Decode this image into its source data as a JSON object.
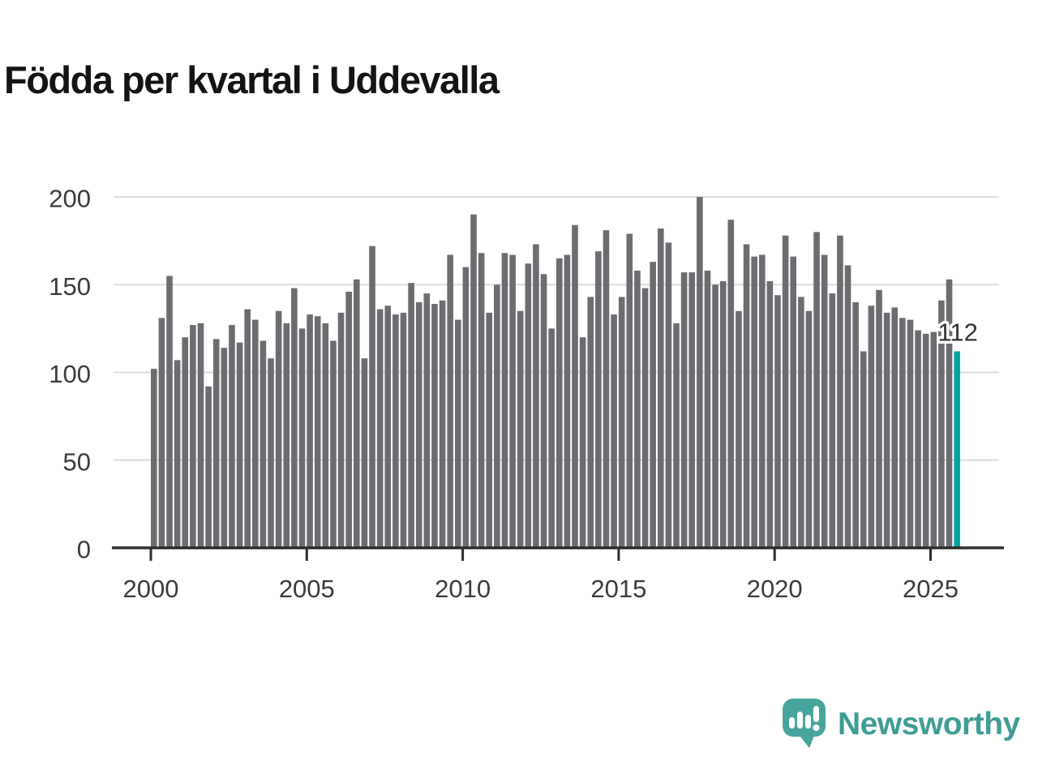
{
  "title": "Födda per kvartal i Uddevalla",
  "annotation": {
    "label": "112"
  },
  "logo": {
    "text": "Newsworthy"
  },
  "colors": {
    "bar": "#6c6c71",
    "accent": "#00a3a2",
    "axis": "#2e2e2e",
    "grid": "#dcdcdc",
    "tick_text": "#3b3b3b",
    "title_text": "#141414",
    "annotation_text": "#333333",
    "logo_teal": "#3f9d95"
  },
  "chart_data": {
    "type": "bar",
    "title": "Födda per kvartal i Uddevalla",
    "xlabel": "",
    "ylabel": "",
    "frequency": "quarterly",
    "start_quarter": "2000 Q1",
    "end_quarter": "2025 Q4",
    "x_tick_labels": [
      "2000",
      "2005",
      "2010",
      "2015",
      "2020",
      "2025"
    ],
    "x_tick_years": [
      2000,
      2005,
      2010,
      2015,
      2020,
      2025
    ],
    "y_ticks": [
      0,
      50,
      100,
      150,
      200
    ],
    "ylim": [
      0,
      200
    ],
    "grid": true,
    "legend": false,
    "highlight_last": true,
    "highlight_value_label": "112",
    "values": [
      102,
      131,
      155,
      107,
      120,
      127,
      128,
      92,
      119,
      114,
      127,
      117,
      136,
      130,
      118,
      108,
      135,
      128,
      148,
      125,
      133,
      132,
      128,
      118,
      134,
      146,
      153,
      108,
      172,
      136,
      138,
      133,
      134,
      151,
      140,
      145,
      139,
      141,
      167,
      130,
      160,
      190,
      168,
      134,
      150,
      168,
      167,
      135,
      162,
      173,
      156,
      125,
      165,
      167,
      184,
      120,
      143,
      169,
      181,
      133,
      143,
      179,
      158,
      148,
      163,
      182,
      174,
      128,
      157,
      157,
      200,
      158,
      150,
      152,
      187,
      135,
      173,
      166,
      167,
      152,
      144,
      178,
      166,
      143,
      135,
      180,
      167,
      145,
      178,
      161,
      140,
      112,
      138,
      147,
      134,
      137,
      131,
      130,
      124,
      122,
      123,
      141,
      153,
      112
    ]
  }
}
